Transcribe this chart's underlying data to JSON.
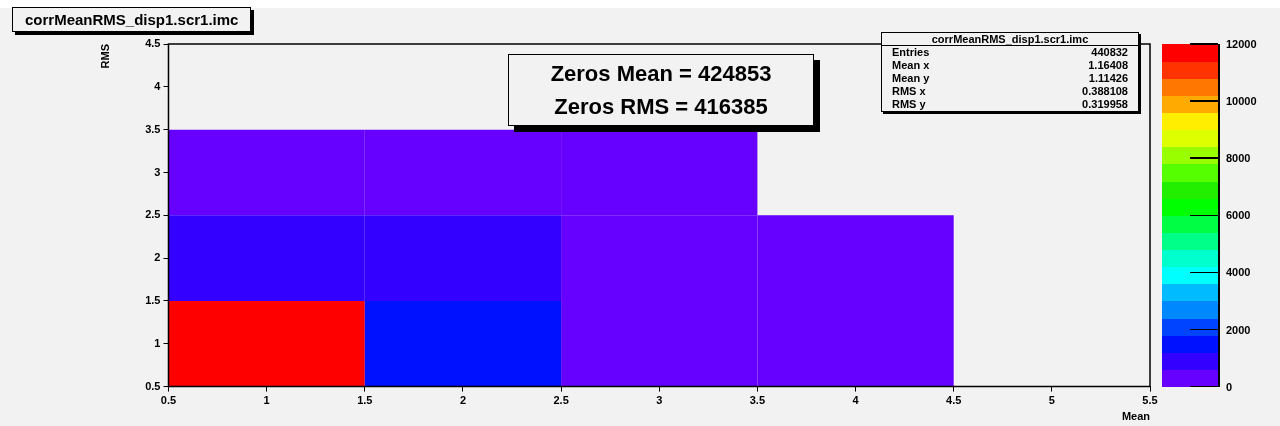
{
  "chart_data": {
    "type": "heatmap",
    "title": "corrMeanRMS_disp1.scr1.imc",
    "xlabel": "Mean",
    "ylabel": "RMS",
    "x": [
      1,
      2,
      3,
      4
    ],
    "y": [
      3,
      2,
      1
    ],
    "xlim": [
      0.5,
      5.5
    ],
    "xticks": [
      0.5,
      1,
      1.5,
      2,
      2.5,
      3,
      3.5,
      4,
      4.5,
      5,
      5.5
    ],
    "ylim": [
      0.5,
      4.5
    ],
    "yticks": [
      0.5,
      1,
      1.5,
      2,
      2.5,
      3,
      3.5,
      4,
      4.5
    ],
    "cells": [
      [
        300,
        300,
        300,
        null
      ],
      [
        900,
        900,
        300,
        300
      ],
      [
        11700,
        1500,
        300,
        300
      ]
    ],
    "clim": [
      0,
      12000
    ],
    "cticks": [
      0,
      2000,
      4000,
      6000,
      8000,
      10000,
      12000
    ],
    "annotations": [
      "Zeros Mean = 424853",
      "Zeros RMS = 416385",
      "corrMeanRMS_disp1.scr1.imc",
      "Entries 440832",
      "Mean x 1.16408",
      "Mean y 1.11426",
      "RMS x 0.388108",
      "RMS y 0.319958"
    ]
  }
}
